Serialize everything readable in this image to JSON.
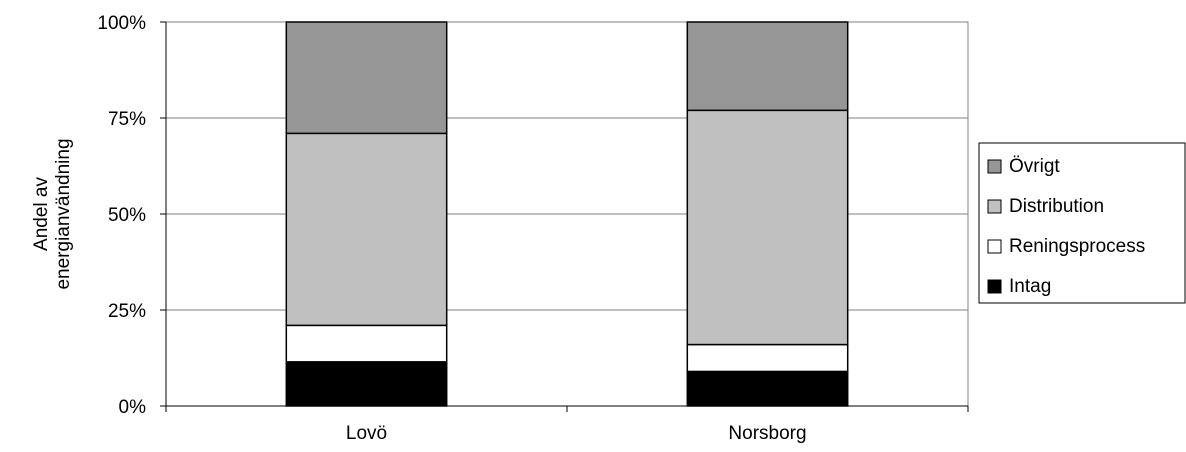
{
  "chart_data": {
    "type": "bar",
    "stacked": "percent",
    "categories": [
      "Lovö",
      "Norsborg"
    ],
    "series": [
      {
        "name": "Intag",
        "values": [
          11.5,
          9
        ],
        "color": "#000000"
      },
      {
        "name": "Reningsprocess",
        "values": [
          9.5,
          7
        ],
        "color": "#ffffff"
      },
      {
        "name": "Distribution",
        "values": [
          50,
          61
        ],
        "color": "#c0c0c0"
      },
      {
        "name": "Övrigt",
        "values": [
          29,
          23
        ],
        "color": "#969696"
      }
    ],
    "yticks": [
      "0%",
      "25%",
      "50%",
      "75%",
      "100%"
    ],
    "ylabel_lines": [
      "Andel av",
      "energianvändning"
    ],
    "ylim": [
      0,
      100
    ],
    "grid": true,
    "legend_position": "right",
    "legend_order": [
      "Övrigt",
      "Distribution",
      "Reningsprocess",
      "Intag"
    ]
  }
}
